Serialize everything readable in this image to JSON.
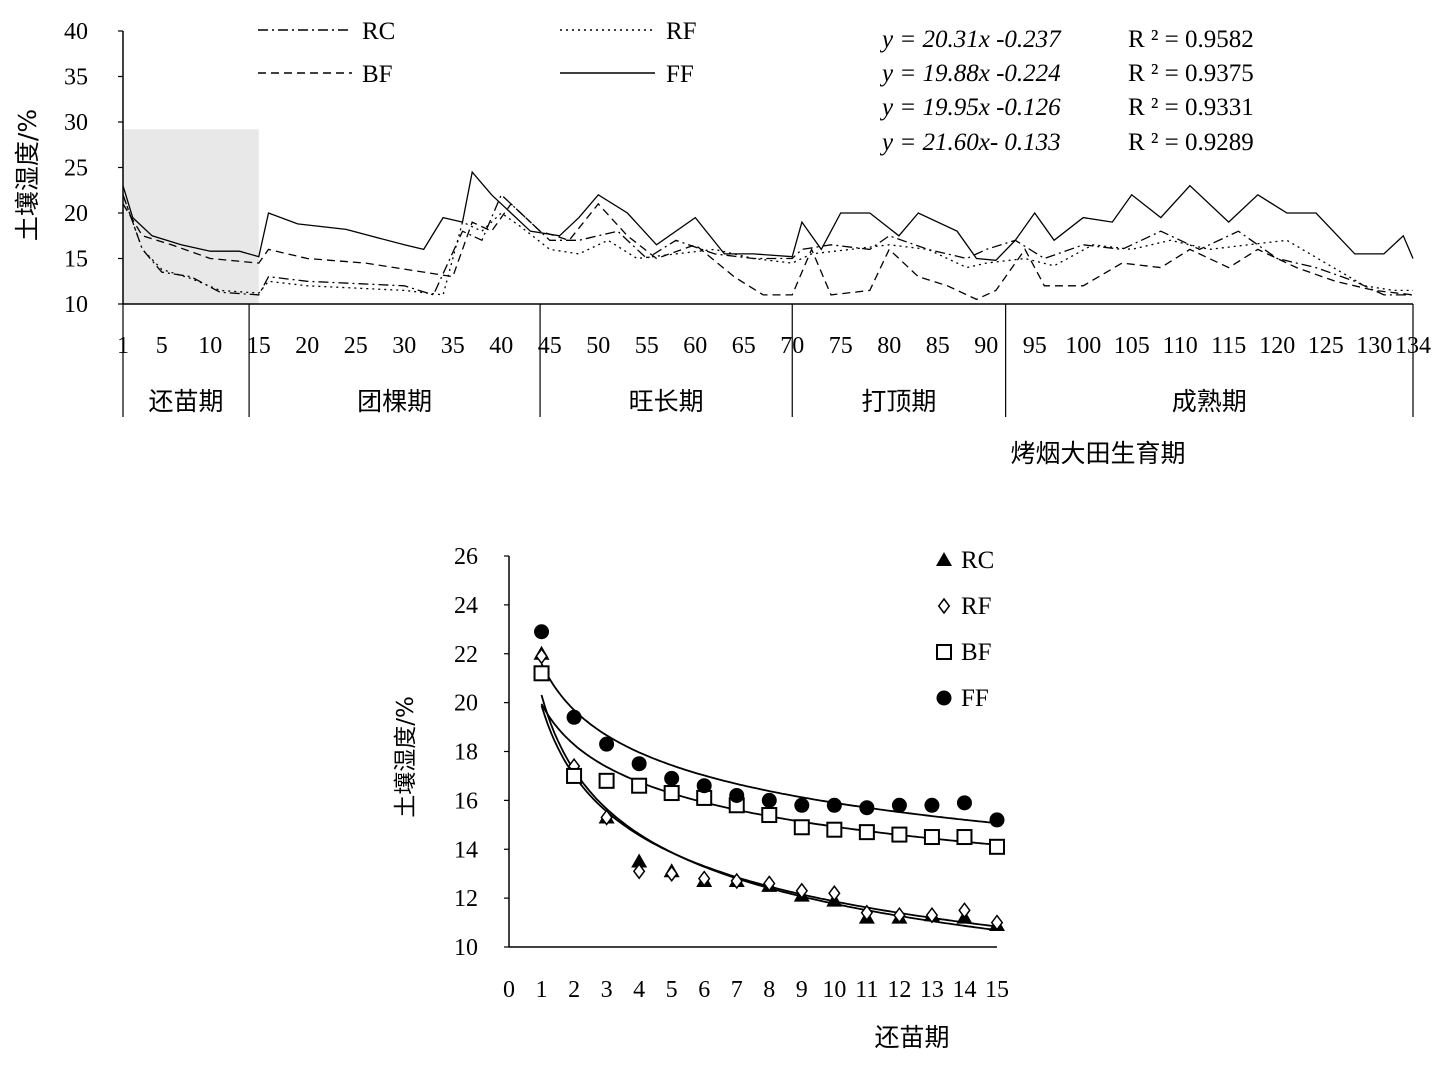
{
  "chart_data": [
    {
      "type": "line",
      "title": "",
      "xlabel": "烤烟大田生育期",
      "ylabel": "土壤湿度/%",
      "xlim": [
        1,
        134
      ],
      "ylim": [
        10,
        40
      ],
      "yticks": [
        "10",
        "15",
        "20",
        "25",
        "30",
        "35",
        "40"
      ],
      "xticks": [
        "1",
        "5",
        "10",
        "15",
        "20",
        "25",
        "30",
        "35",
        "40",
        "45",
        "50",
        "55",
        "60",
        "65",
        "70",
        "75",
        "80",
        "85",
        "90",
        "95",
        "100",
        "105",
        "110",
        "115",
        "120",
        "125",
        "130",
        "134"
      ],
      "stages": [
        {
          "label": "还苗期",
          "start": 1,
          "end": 14
        },
        {
          "label": "团棵期",
          "start": 14,
          "end": 44
        },
        {
          "label": "旺长期",
          "start": 44,
          "end": 70
        },
        {
          "label": "打顶期",
          "start": 70,
          "end": 92
        },
        {
          "label": "成熟期",
          "start": 92,
          "end": 134
        }
      ],
      "shaded_region": {
        "x": [
          1,
          15
        ],
        "y": [
          10,
          29.2
        ]
      },
      "legend_position": "top",
      "grid": false,
      "equations": [
        {
          "eq": "y = 20.31x -0.237",
          "r2": "R ² = 0.9582"
        },
        {
          "eq": "y = 19.88x -0.224",
          "r2": "R ² = 0.9375"
        },
        {
          "eq": "y = 19.95x -0.126",
          "r2": "R ² = 0.9331"
        },
        {
          "eq": "y = 21.60x- 0.133",
          "r2": "R ² = 0.9289"
        }
      ],
      "series": [
        {
          "name": "RC",
          "style": "dashdot",
          "points": [
            [
              1,
              22
            ],
            [
              3,
              16
            ],
            [
              5,
              13.5
            ],
            [
              8,
              13
            ],
            [
              11,
              11.3
            ],
            [
              15,
              11
            ],
            [
              16,
              13
            ],
            [
              20,
              12.5
            ],
            [
              30,
              12
            ],
            [
              33,
              11
            ],
            [
              36,
              18
            ],
            [
              38,
              17
            ],
            [
              40,
              22
            ],
            [
              42,
              20
            ],
            [
              45,
              17
            ],
            [
              48,
              17
            ],
            [
              52,
              18
            ],
            [
              55,
              15
            ],
            [
              58,
              17
            ],
            [
              62,
              15.5
            ],
            [
              66,
              15
            ],
            [
              70,
              15
            ],
            [
              71,
              16
            ],
            [
              74,
              16.5
            ],
            [
              78,
              16
            ],
            [
              80,
              17.5
            ],
            [
              84,
              16
            ],
            [
              88,
              15
            ],
            [
              90,
              16
            ],
            [
              93,
              17
            ],
            [
              96,
              15
            ],
            [
              100,
              16.5
            ],
            [
              104,
              16
            ],
            [
              108,
              18
            ],
            [
              112,
              16
            ],
            [
              116,
              18
            ],
            [
              120,
              15
            ],
            [
              124,
              14
            ],
            [
              128,
              12.5
            ],
            [
              131,
              11
            ],
            [
              134,
              11
            ]
          ]
        },
        {
          "name": "RF",
          "style": "dotted",
          "points": [
            [
              1,
              22
            ],
            [
              3,
              16
            ],
            [
              5,
              13.8
            ],
            [
              8,
              12.8
            ],
            [
              11,
              11.5
            ],
            [
              15,
              11.2
            ],
            [
              16,
              12.5
            ],
            [
              20,
              12
            ],
            [
              30,
              11.5
            ],
            [
              34,
              11
            ],
            [
              36,
              19
            ],
            [
              38,
              18
            ],
            [
              40,
              20
            ],
            [
              42,
              18.5
            ],
            [
              45,
              16
            ],
            [
              48,
              15.5
            ],
            [
              51,
              17
            ],
            [
              54,
              15
            ],
            [
              58,
              15.5
            ],
            [
              62,
              16
            ],
            [
              66,
              15
            ],
            [
              70,
              14.5
            ],
            [
              72,
              15.5
            ],
            [
              76,
              16
            ],
            [
              80,
              16.5
            ],
            [
              84,
              16
            ],
            [
              88,
              14
            ],
            [
              90,
              14.5
            ],
            [
              94,
              15
            ],
            [
              97,
              14.2
            ],
            [
              101,
              16.5
            ],
            [
              105,
              16
            ],
            [
              109,
              17
            ],
            [
              113,
              16
            ],
            [
              117,
              16.5
            ],
            [
              121,
              17
            ],
            [
              125,
              14.5
            ],
            [
              129,
              12
            ],
            [
              132,
              11.5
            ],
            [
              134,
              11.5
            ]
          ]
        },
        {
          "name": "BF",
          "style": "dashed",
          "points": [
            [
              1,
              21
            ],
            [
              3,
              17.5
            ],
            [
              6,
              16.5
            ],
            [
              10,
              15
            ],
            [
              15,
              14.5
            ],
            [
              16,
              16
            ],
            [
              20,
              15
            ],
            [
              26,
              14.5
            ],
            [
              32,
              13.5
            ],
            [
              35,
              13
            ],
            [
              37,
              19
            ],
            [
              39,
              18
            ],
            [
              41,
              21
            ],
            [
              44,
              18
            ],
            [
              47,
              17
            ],
            [
              50,
              21
            ],
            [
              53,
              17.5
            ],
            [
              56,
              15
            ],
            [
              60,
              16.5
            ],
            [
              64,
              13
            ],
            [
              67,
              11
            ],
            [
              70,
              11
            ],
            [
              72,
              16
            ],
            [
              74,
              11
            ],
            [
              78,
              11.5
            ],
            [
              80,
              16
            ],
            [
              83,
              13
            ],
            [
              86,
              12
            ],
            [
              89,
              10.5
            ],
            [
              91,
              11.5
            ],
            [
              94,
              16
            ],
            [
              96,
              12
            ],
            [
              100,
              12
            ],
            [
              104,
              14.5
            ],
            [
              108,
              14
            ],
            [
              111,
              16
            ],
            [
              115,
              14
            ],
            [
              118,
              16
            ],
            [
              122,
              14
            ],
            [
              126,
              12.5
            ],
            [
              130,
              11.5
            ],
            [
              134,
              11
            ]
          ]
        },
        {
          "name": "FF",
          "style": "solid",
          "points": [
            [
              1,
              23
            ],
            [
              2,
              19.5
            ],
            [
              4,
              17.5
            ],
            [
              7,
              16.5
            ],
            [
              10,
              15.8
            ],
            [
              13,
              15.8
            ],
            [
              15,
              15.2
            ],
            [
              16,
              20
            ],
            [
              19,
              18.8
            ],
            [
              24,
              18.2
            ],
            [
              30,
              16.5
            ],
            [
              32,
              16
            ],
            [
              34,
              19.5
            ],
            [
              36,
              19
            ],
            [
              37,
              24.5
            ],
            [
              39,
              22
            ],
            [
              41,
              20
            ],
            [
              43,
              18
            ],
            [
              46,
              17.5
            ],
            [
              48,
              19.5
            ],
            [
              50,
              22
            ],
            [
              53,
              20
            ],
            [
              56,
              16.5
            ],
            [
              60,
              19.5
            ],
            [
              63,
              15.5
            ],
            [
              66,
              15.5
            ],
            [
              70,
              15.2
            ],
            [
              71,
              19
            ],
            [
              73,
              16
            ],
            [
              75,
              20
            ],
            [
              78,
              20
            ],
            [
              81,
              17.5
            ],
            [
              83,
              20
            ],
            [
              87,
              18
            ],
            [
              89,
              15
            ],
            [
              91,
              14.8
            ],
            [
              93,
              17
            ],
            [
              95,
              20
            ],
            [
              97,
              17
            ],
            [
              100,
              19.5
            ],
            [
              103,
              19
            ],
            [
              105,
              22
            ],
            [
              108,
              19.5
            ],
            [
              111,
              23
            ],
            [
              115,
              19
            ],
            [
              118,
              22
            ],
            [
              121,
              20
            ],
            [
              124,
              20
            ],
            [
              128,
              15.5
            ],
            [
              131,
              15.5
            ],
            [
              133,
              17.5
            ],
            [
              134,
              15
            ]
          ]
        }
      ]
    },
    {
      "type": "scatter",
      "title": "",
      "xlabel": "还苗期",
      "ylabel": "土壤湿度/%",
      "xlim": [
        0,
        15
      ],
      "ylim": [
        10,
        26
      ],
      "xticks": [
        "0",
        "1",
        "2",
        "3",
        "4",
        "5",
        "6",
        "7",
        "8",
        "9",
        "10",
        "11",
        "12",
        "13",
        "14",
        "15"
      ],
      "yticks": [
        "10",
        "12",
        "14",
        "16",
        "18",
        "20",
        "22",
        "24",
        "26"
      ],
      "legend_position": "top-right",
      "series": [
        {
          "name": "RC",
          "marker": "filled-triangle",
          "x": [
            1,
            2,
            3,
            4,
            5,
            6,
            7,
            8,
            9,
            10,
            11,
            12,
            13,
            14,
            15
          ],
          "y": [
            22.0,
            17.3,
            15.3,
            13.5,
            13.1,
            12.7,
            12.7,
            12.5,
            12.1,
            11.9,
            11.2,
            11.2,
            11.3,
            11.2,
            10.9
          ],
          "fit": {
            "a": 20.31,
            "b": -0.237
          }
        },
        {
          "name": "RF",
          "marker": "open-diamond",
          "x": [
            1,
            2,
            3,
            4,
            5,
            6,
            7,
            8,
            9,
            10,
            11,
            12,
            13,
            14,
            15
          ],
          "y": [
            21.9,
            17.4,
            15.3,
            13.1,
            13.0,
            12.8,
            12.7,
            12.6,
            12.3,
            12.2,
            11.4,
            11.3,
            11.3,
            11.5,
            11.0
          ],
          "fit": {
            "a": 19.88,
            "b": -0.224
          }
        },
        {
          "name": "BF",
          "marker": "open-square",
          "x": [
            1,
            2,
            3,
            4,
            5,
            6,
            7,
            8,
            9,
            10,
            11,
            12,
            13,
            14,
            15
          ],
          "y": [
            21.2,
            17.0,
            16.8,
            16.6,
            16.3,
            16.1,
            15.8,
            15.4,
            14.9,
            14.8,
            14.7,
            14.6,
            14.5,
            14.5,
            14.1
          ],
          "fit": {
            "a": 19.95,
            "b": -0.126
          }
        },
        {
          "name": "FF",
          "marker": "filled-circle",
          "x": [
            1,
            2,
            3,
            4,
            5,
            6,
            7,
            8,
            9,
            10,
            11,
            12,
            13,
            14,
            15
          ],
          "y": [
            22.9,
            19.4,
            18.3,
            17.5,
            16.9,
            16.6,
            16.2,
            16.0,
            15.8,
            15.8,
            15.7,
            15.8,
            15.8,
            15.9,
            15.2
          ],
          "fit": {
            "a": 21.6,
            "b": -0.133
          }
        }
      ]
    }
  ]
}
